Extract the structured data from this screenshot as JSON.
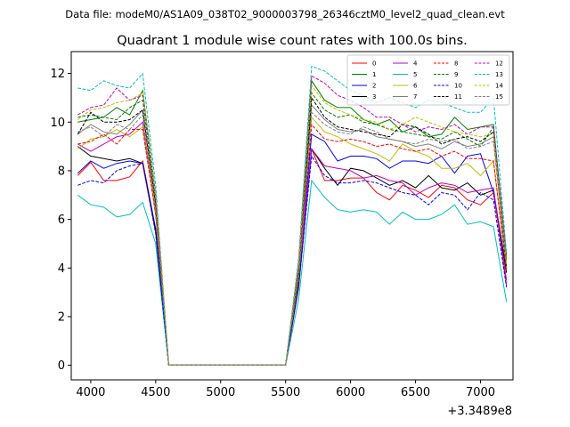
{
  "header": {
    "data_file": "Data file: modeM0/AS1A09_038T02_9000003798_26346cztM0_level2_quad_clean.evt"
  },
  "chart_data": {
    "type": "line",
    "title": "Quadrant 1 module wise count rates with 100.0s bins.",
    "xlabel": "",
    "ylabel": "",
    "x_offset_label": "+3.3489e8",
    "x_offset": 334890000,
    "xlim": [
      3850,
      7250
    ],
    "ylim": [
      -0.6,
      12.9
    ],
    "x_ticks": [
      4000,
      4500,
      5000,
      5500,
      6000,
      6500,
      7000
    ],
    "x_tick_labels": [
      "4000",
      "4500",
      "5000",
      "5500",
      "6000",
      "6500",
      "7000"
    ],
    "y_ticks": [
      0,
      2,
      4,
      6,
      8,
      10,
      12
    ],
    "y_tick_labels": [
      "0",
      "2",
      "4",
      "6",
      "8",
      "10",
      "12"
    ],
    "grid": false,
    "legend_placement": "top-right",
    "legend_columns": 4,
    "x": [
      3900,
      4000,
      4100,
      4200,
      4300,
      4400,
      4500,
      4600,
      4700,
      4800,
      4900,
      5000,
      5100,
      5200,
      5300,
      5400,
      5500,
      5600,
      5700,
      5800,
      5900,
      6000,
      6100,
      6200,
      6300,
      6400,
      6500,
      6600,
      6700,
      6800,
      6900,
      7000,
      7100,
      7200
    ],
    "series": [
      {
        "name": "0",
        "color": "#ff0000",
        "dash": "solid",
        "values": [
          7.8,
          8.35,
          7.6,
          7.6,
          7.75,
          8.4,
          5.6,
          0.02,
          0.02,
          0.02,
          0.02,
          0.02,
          0.02,
          0.02,
          0.02,
          0.02,
          0.02,
          3.2,
          8.9,
          7.6,
          7.6,
          7.7,
          7.7,
          7.1,
          6.8,
          7.4,
          7.2,
          6.9,
          7.4,
          7.3,
          6.8,
          6.6,
          7.1,
          3.5
        ]
      },
      {
        "name": "1",
        "color": "#008000",
        "dash": "solid",
        "values": [
          10.0,
          10.1,
          10.2,
          10.6,
          10.3,
          11.3,
          7.0,
          0.02,
          0.02,
          0.02,
          0.02,
          0.02,
          0.02,
          0.02,
          0.02,
          0.02,
          0.02,
          4.1,
          11.7,
          10.9,
          10.6,
          10.6,
          10.1,
          9.9,
          10.1,
          9.6,
          9.8,
          9.4,
          9.5,
          10.2,
          9.7,
          9.8,
          9.9,
          4.4
        ]
      },
      {
        "name": "2",
        "color": "#0000ff",
        "dash": "solid",
        "values": [
          7.9,
          8.4,
          8.1,
          8.3,
          8.4,
          8.3,
          5.6,
          0.02,
          0.02,
          0.02,
          0.02,
          0.02,
          0.02,
          0.02,
          0.02,
          0.02,
          0.02,
          3.5,
          9.5,
          9.2,
          8.4,
          8.6,
          8.6,
          8.5,
          8.1,
          8.4,
          8.4,
          8.3,
          8.6,
          7.9,
          8.6,
          8.7,
          7.1,
          3.9
        ]
      },
      {
        "name": "3",
        "color": "#000000",
        "dash": "solid",
        "values": [
          9.0,
          8.6,
          8.5,
          8.4,
          8.5,
          8.3,
          5.5,
          0.02,
          0.02,
          0.02,
          0.02,
          0.02,
          0.02,
          0.02,
          0.02,
          0.02,
          0.02,
          3.3,
          8.9,
          8.1,
          7.4,
          8.1,
          8.0,
          7.7,
          7.4,
          7.6,
          7.3,
          7.8,
          7.3,
          7.2,
          7.5,
          7.0,
          7.2,
          3.8
        ]
      },
      {
        "name": "4",
        "color": "#bf00bf",
        "dash": "solid",
        "values": [
          9.1,
          8.8,
          9.1,
          9.4,
          9.5,
          10.0,
          6.2,
          0.02,
          0.02,
          0.02,
          0.02,
          0.02,
          0.02,
          0.02,
          0.02,
          0.02,
          0.02,
          3.6,
          8.9,
          8.2,
          8.1,
          8.0,
          7.7,
          7.8,
          7.6,
          7.5,
          7.0,
          7.3,
          7.5,
          7.4,
          7.1,
          7.2,
          7.3,
          3.3
        ]
      },
      {
        "name": "5",
        "color": "#00bfbf",
        "dash": "solid",
        "values": [
          7.0,
          6.6,
          6.5,
          6.1,
          6.2,
          6.7,
          5.0,
          0.02,
          0.02,
          0.02,
          0.02,
          0.02,
          0.02,
          0.02,
          0.02,
          0.02,
          0.02,
          2.7,
          7.6,
          6.9,
          6.4,
          6.3,
          6.4,
          6.3,
          5.8,
          6.3,
          6.0,
          6.0,
          6.2,
          6.6,
          5.8,
          5.9,
          5.7,
          2.6
        ]
      },
      {
        "name": "6",
        "color": "#bfbf00",
        "dash": "solid",
        "values": [
          8.9,
          9.3,
          9.4,
          9.7,
          9.4,
          9.8,
          6.2,
          0.02,
          0.02,
          0.02,
          0.02,
          0.02,
          0.02,
          0.02,
          0.02,
          0.02,
          0.02,
          3.6,
          10.2,
          9.6,
          9.4,
          9.1,
          8.9,
          8.7,
          8.4,
          9.1,
          8.8,
          8.6,
          8.1,
          8.1,
          8.3,
          7.8,
          8.4,
          4.0
        ]
      },
      {
        "name": "7",
        "color": "#808080",
        "dash": "solid",
        "values": [
          9.5,
          9.9,
          9.6,
          9.5,
          9.9,
          10.5,
          6.5,
          0.02,
          0.02,
          0.02,
          0.02,
          0.02,
          0.02,
          0.02,
          0.02,
          0.02,
          0.02,
          3.9,
          10.7,
          10.1,
          9.7,
          9.6,
          9.7,
          9.4,
          9.3,
          9.2,
          9.0,
          9.1,
          8.9,
          9.2,
          9.0,
          9.1,
          9.4,
          4.1
        ]
      },
      {
        "name": "8",
        "color": "#ff0000",
        "dash": "dashed",
        "values": [
          9.1,
          9.2,
          9.5,
          9.1,
          9.7,
          9.7,
          6.2,
          0.02,
          0.02,
          0.02,
          0.02,
          0.02,
          0.02,
          0.02,
          0.02,
          0.02,
          0.02,
          3.7,
          9.9,
          9.3,
          9.2,
          9.3,
          9.2,
          9.0,
          9.1,
          8.9,
          8.8,
          8.9,
          8.6,
          8.8,
          8.5,
          8.5,
          8.4,
          3.9
        ]
      },
      {
        "name": "9",
        "color": "#008000",
        "dash": "dashed",
        "values": [
          10.2,
          10.3,
          10.2,
          10.1,
          10.6,
          10.9,
          6.8,
          0.02,
          0.02,
          0.02,
          0.02,
          0.02,
          0.02,
          0.02,
          0.02,
          0.02,
          0.02,
          4.0,
          11.2,
          10.5,
          10.2,
          10.3,
          10.0,
          9.9,
          9.7,
          9.6,
          9.5,
          9.4,
          9.3,
          9.6,
          9.3,
          9.0,
          9.8,
          4.3
        ]
      },
      {
        "name": "10",
        "color": "#0000ff",
        "dash": "dashed",
        "values": [
          7.4,
          7.6,
          7.5,
          8.0,
          8.2,
          8.3,
          5.4,
          0.02,
          0.02,
          0.02,
          0.02,
          0.02,
          0.02,
          0.02,
          0.02,
          0.02,
          0.02,
          3.2,
          8.6,
          7.8,
          7.5,
          7.5,
          7.6,
          7.5,
          7.3,
          7.1,
          7.0,
          6.6,
          7.1,
          7.0,
          6.4,
          7.1,
          6.8,
          3.2
        ]
      },
      {
        "name": "11",
        "color": "#000000",
        "dash": "dashed",
        "values": [
          9.5,
          10.4,
          10.0,
          10.0,
          10.1,
          10.5,
          6.6,
          0.02,
          0.02,
          0.02,
          0.02,
          0.02,
          0.02,
          0.02,
          0.02,
          0.02,
          0.02,
          3.8,
          11.0,
          10.2,
          9.8,
          9.7,
          9.6,
          9.5,
          9.4,
          9.9,
          9.8,
          9.5,
          9.1,
          9.3,
          9.4,
          9.2,
          9.6,
          4.0
        ]
      },
      {
        "name": "12",
        "color": "#bf00bf",
        "dash": "dashed",
        "values": [
          10.3,
          10.6,
          10.7,
          11.4,
          10.9,
          11.1,
          7.0,
          0.02,
          0.02,
          0.02,
          0.02,
          0.02,
          0.02,
          0.02,
          0.02,
          0.02,
          0.02,
          4.2,
          11.9,
          11.6,
          11.1,
          10.9,
          10.6,
          10.2,
          10.2,
          9.9,
          9.6,
          9.8,
          9.7,
          9.9,
          9.5,
          9.8,
          9.8,
          4.5
        ]
      },
      {
        "name": "13",
        "color": "#00bfbf",
        "dash": "dashed",
        "values": [
          11.4,
          11.3,
          11.7,
          11.5,
          11.4,
          12.0,
          7.4,
          0.02,
          0.02,
          0.02,
          0.02,
          0.02,
          0.02,
          0.02,
          0.02,
          0.02,
          0.02,
          4.4,
          12.3,
          12.1,
          11.7,
          11.3,
          11.1,
          10.8,
          11.0,
          10.8,
          10.6,
          10.9,
          10.8,
          10.6,
          10.4,
          10.4,
          11.0,
          4.6
        ]
      },
      {
        "name": "14",
        "color": "#bfbf00",
        "dash": "dashed",
        "values": [
          10.1,
          10.5,
          10.6,
          10.8,
          10.9,
          11.2,
          7.0,
          0.02,
          0.02,
          0.02,
          0.02,
          0.02,
          0.02,
          0.02,
          0.02,
          0.02,
          0.02,
          4.1,
          11.5,
          10.8,
          10.5,
          10.3,
          10.1,
          10.0,
          9.7,
          9.9,
          10.2,
          10.0,
          9.8,
          9.6,
          9.5,
          9.4,
          9.5,
          4.2
        ]
      },
      {
        "name": "15",
        "color": "#808080",
        "dash": "dashed",
        "values": [
          9.6,
          9.8,
          9.4,
          9.9,
          9.7,
          10.3,
          6.4,
          0.02,
          0.02,
          0.02,
          0.02,
          0.02,
          0.02,
          0.02,
          0.02,
          0.02,
          0.02,
          3.7,
          10.4,
          9.9,
          9.6,
          9.5,
          9.8,
          9.6,
          9.3,
          9.2,
          9.1,
          9.3,
          9.2,
          9.3,
          8.9,
          9.0,
          9.2,
          4.0
        ]
      }
    ]
  }
}
